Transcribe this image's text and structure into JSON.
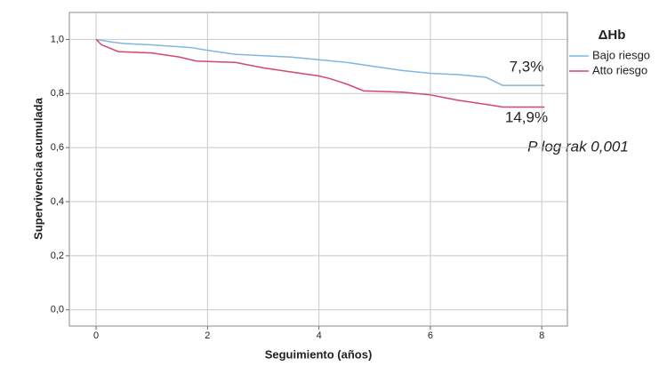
{
  "chart_data": {
    "type": "line",
    "y_label": "Supervivencia acumulada",
    "x_label": "Seguimiento (años)",
    "legend_title": "ΔHb",
    "legend_position": "right",
    "grid": true,
    "xlim": [
      -0.48,
      8.46
    ],
    "ylim": [
      -0.06,
      1.1
    ],
    "xticks": [
      0,
      2,
      4,
      6,
      8
    ],
    "yticks": [
      {
        "value": 0,
        "label": "0,0"
      },
      {
        "value": 0.2,
        "label": "0,2"
      },
      {
        "value": 0.4,
        "label": "0,4"
      },
      {
        "value": 0.6,
        "label": "0,6"
      },
      {
        "value": 0.8,
        "label": "0,8"
      },
      {
        "value": 1,
        "label": "1,0"
      }
    ],
    "series": [
      {
        "name": "Bajo riesgo",
        "color": "#7fb5e0",
        "x": [
          0,
          0.3,
          0.5,
          1,
          1.7,
          2,
          2.5,
          3,
          3.5,
          4,
          4.5,
          5,
          5.5,
          6,
          6.5,
          7,
          7.3,
          8.05
        ],
        "values": [
          1,
          0.99,
          0.985,
          0.98,
          0.97,
          0.96,
          0.945,
          0.94,
          0.935,
          0.925,
          0.915,
          0.9,
          0.885,
          0.875,
          0.87,
          0.86,
          0.83,
          0.83
        ]
      },
      {
        "name": "Atto riesgo",
        "color": "#d6456b",
        "x": [
          0,
          0.1,
          0.4,
          1,
          1.5,
          1.8,
          2.5,
          3,
          3.5,
          4,
          4.2,
          4.5,
          4.8,
          5.5,
          6,
          6.5,
          7,
          7.3,
          8.05
        ],
        "values": [
          1,
          0.98,
          0.955,
          0.95,
          0.935,
          0.92,
          0.915,
          0.895,
          0.88,
          0.865,
          0.855,
          0.835,
          0.81,
          0.805,
          0.795,
          0.775,
          0.76,
          0.75,
          0.75
        ]
      }
    ],
    "annotations": [
      "7,3%",
      "14,9%",
      "P log rak 0,001"
    ]
  }
}
